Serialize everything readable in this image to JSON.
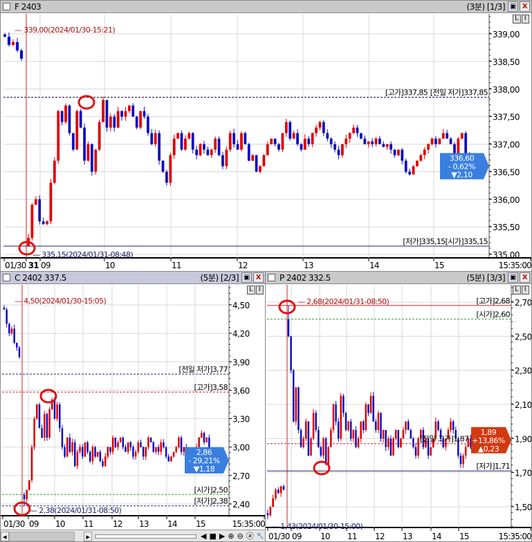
{
  "colors": {
    "up": "#e00000",
    "down": "#1010c0",
    "grid": "#d8d8d8",
    "ref_red": "#d02020",
    "ref_navy": "#202070",
    "ref_green": "#30a030",
    "badge_blue": "#3a7fe0",
    "badge_red": "#d23a10",
    "marker": "#e01010"
  },
  "panels": [
    {
      "id": "f",
      "title": "F 2403",
      "meta": "(3분) [1/3]",
      "yticks": [
        "339,00",
        "338,50",
        "338,00",
        "337,50",
        "337,00",
        "336,50",
        "336,00",
        "335,50",
        "335,00"
      ],
      "xticks": [
        "01/30",
        "31",
        "09",
        "10",
        "11",
        "12",
        "13",
        "14",
        "15",
        "15:35:00"
      ],
      "max_label": "339,00(2024/01/30-15:21)",
      "min_label": "335,15(2024/01/31-08:48)",
      "refs": [
        {
          "label": "[고가]337,85",
          "value": 337.85,
          "color": "ref_red",
          "style": "dash"
        },
        {
          "label": "[전일 저가]337,85",
          "value": 337.85,
          "color": "ref_navy",
          "style": "dash"
        },
        {
          "label": "[저가]335,15[시가]335,15",
          "value": 335.15,
          "color": "ref_navy",
          "style": "solid"
        }
      ],
      "badge": {
        "price": "336,60",
        "change_pct": "- 0,62%",
        "change": "▼2,10",
        "color": "badge_blue",
        "value": 336.6
      },
      "prior": [
        338.95,
        338.8,
        338.85,
        338.7,
        338.55
      ],
      "session_open": 335.15,
      "session_low": 335.15,
      "session": [
        335.3,
        335.9,
        336.0,
        335.6,
        335.55,
        335.6,
        336.3,
        336.7,
        337.6,
        337.4,
        337.7,
        337.2,
        336.9,
        337.6,
        337.3,
        336.7,
        337.0,
        336.5,
        336.9,
        337.4,
        337.8,
        337.3,
        337.5,
        337.3,
        337.6,
        337.5,
        337.6,
        337.7,
        337.5,
        337.3,
        337.6,
        337.5,
        337.2,
        337.0,
        337.2,
        336.7,
        336.5,
        336.3,
        336.8,
        337.1,
        337.2,
        336.9,
        337.1,
        337.2,
        336.9,
        336.8,
        337.0,
        336.9,
        336.8,
        336.9,
        337.1,
        336.8,
        336.6,
        336.9,
        337.2,
        337.0,
        336.9,
        337.2,
        337.0,
        336.7,
        336.8,
        336.5,
        336.6,
        336.8,
        337.0,
        337.1,
        337.0,
        336.9,
        337.2,
        337.4,
        337.1,
        337.2,
        337.0,
        336.9,
        337.1,
        337.0,
        337.2,
        337.3,
        337.4,
        337.2,
        337.1,
        337.0,
        336.9,
        336.8,
        337.0,
        337.1,
        337.2,
        337.3,
        337.2,
        337.1,
        337.0,
        337.05,
        337.0,
        337.1,
        337.0,
        336.95,
        337.0,
        336.9,
        336.8,
        336.9,
        336.7,
        336.5,
        336.45,
        336.6,
        336.7,
        336.8,
        336.9,
        337.0,
        337.1,
        337.0,
        337.1,
        337.2,
        337.1,
        337.0,
        336.8,
        337.1,
        337.2,
        336.8,
        336.7,
        336.6
      ]
    },
    {
      "id": "c",
      "title": "C 2402 337.5",
      "meta": "(5분) [2/3]",
      "yticks": [
        "4,50",
        "4,20",
        "3,90",
        "3,60",
        "3,30",
        "3,00",
        "2,70",
        "2,40"
      ],
      "xticks": [
        "01/30",
        "09",
        "10",
        "11",
        "12",
        "13",
        "14",
        "15",
        "15:35:00"
      ],
      "max_label": "4,50(2024/01/30-15:05)",
      "min_label": "2,38(2024/01/31-08:50)",
      "refs": [
        {
          "label": "[전일 저가]3,77",
          "value": 3.77,
          "color": "ref_navy",
          "style": "dash"
        },
        {
          "label": "[고가]3,58",
          "value": 3.58,
          "color": "ref_red",
          "style": "dash"
        },
        {
          "label": "[시가]2,50",
          "value": 2.5,
          "color": "ref_green",
          "style": "dash"
        },
        {
          "label": "[저가]2,38",
          "value": 2.38,
          "color": "ref_navy",
          "style": "dash"
        }
      ],
      "badge": {
        "price": "2,86",
        "change_pct": "- 29,21%",
        "change": "▼1,18",
        "color": "badge_blue",
        "value": 2.86
      },
      "prior": [
        4.45,
        4.3,
        4.2,
        4.25,
        4.1,
        4.05,
        3.95
      ],
      "session_open": 2.5,
      "session_low": 2.38,
      "session": [
        2.45,
        2.55,
        2.65,
        3.0,
        3.3,
        3.45,
        3.2,
        3.1,
        3.35,
        3.1,
        3.4,
        3.5,
        3.3,
        3.45,
        3.2,
        3.0,
        2.9,
        3.1,
        2.95,
        3.05,
        2.8,
        2.95,
        3.0,
        2.9,
        3.05,
        2.95,
        2.85,
        3.0,
        2.9,
        2.95,
        2.85,
        2.8,
        2.9,
        3.0,
        2.95,
        3.1,
        3.0,
        3.05,
        3.1,
        3.0,
        2.95,
        3.05,
        3.0,
        2.9,
        2.95,
        3.05,
        3.0,
        2.9,
        3.0,
        3.1,
        3.05,
        2.95,
        3.0,
        2.95,
        3.05,
        3.0,
        2.9,
        2.85,
        2.9,
        2.95,
        3.0,
        3.1,
        2.95,
        3.0,
        2.95,
        2.85,
        2.8,
        2.9,
        3.0,
        3.1,
        3.15,
        3.05,
        3.1,
        2.95,
        2.86
      ]
    },
    {
      "id": "p",
      "title": "P 2402 332.5",
      "meta": "(5분) [3/3]",
      "yticks": [
        "2,70",
        "2,50",
        "2,30",
        "2,10",
        "1,90",
        "1,70",
        "1,50"
      ],
      "xticks": [
        "01/30",
        "09",
        "10",
        "11",
        "12",
        "13",
        "14",
        "15",
        "15:35:00"
      ],
      "max_label": "2,68(2024/01/31-08:50)",
      "min_label": "1,43(2024/01/30-15:00)",
      "refs": [
        {
          "label": "[고가]2,68",
          "value": 2.68,
          "color": "ref_red",
          "style": "solid"
        },
        {
          "label": "[시가]2,60",
          "value": 2.6,
          "color": "ref_green",
          "style": "dash"
        },
        {
          "label": "[전일 고가]1,87",
          "value": 1.87,
          "color": "ref_red",
          "style": "dash"
        },
        {
          "label": "[저가]1,71",
          "value": 1.71,
          "color": "ref_navy",
          "style": "solid"
        }
      ],
      "badge": {
        "price": "1,89",
        "change_pct": "+13,86%",
        "change": "▲0,23",
        "color": "badge_red",
        "value": 1.89
      },
      "prior": [
        1.45,
        1.5,
        1.55,
        1.6,
        1.58,
        1.62,
        1.6
      ],
      "session_open": 2.6,
      "session_high": 2.68,
      "session": [
        2.5,
        2.3,
        2.0,
        2.2,
        1.95,
        1.85,
        1.9,
        2.0,
        1.8,
        1.9,
        2.05,
        1.95,
        1.85,
        1.8,
        1.9,
        1.75,
        1.85,
        1.95,
        2.1,
        2.0,
        1.9,
        2.15,
        2.05,
        1.95,
        2.0,
        1.9,
        1.95,
        1.85,
        1.9,
        2.0,
        1.95,
        2.1,
        2.05,
        2.15,
        2.0,
        1.95,
        2.05,
        1.9,
        1.95,
        1.85,
        1.9,
        1.8,
        1.9,
        1.95,
        1.85,
        1.9,
        1.95,
        2.0,
        1.95,
        1.9,
        1.85,
        1.8,
        1.9,
        1.95,
        1.85,
        1.9,
        1.8,
        1.85,
        1.9,
        2.0,
        1.95,
        1.9,
        1.85,
        1.9,
        1.95,
        2.0,
        1.95,
        1.9,
        1.8,
        1.75,
        1.8,
        1.85,
        1.9,
        1.85,
        1.89
      ]
    }
  ],
  "lu_buttons": [
    "L",
    "I"
  ],
  "toolbar": {
    "prev": "◀",
    "stop": "■",
    "next": "▶",
    "zoom_in": "⊕",
    "zoom_out": "⊖",
    "auto": "ⓐ",
    "settings": "🔧",
    "scroll_left": "◂",
    "scroll_right": "▸"
  }
}
